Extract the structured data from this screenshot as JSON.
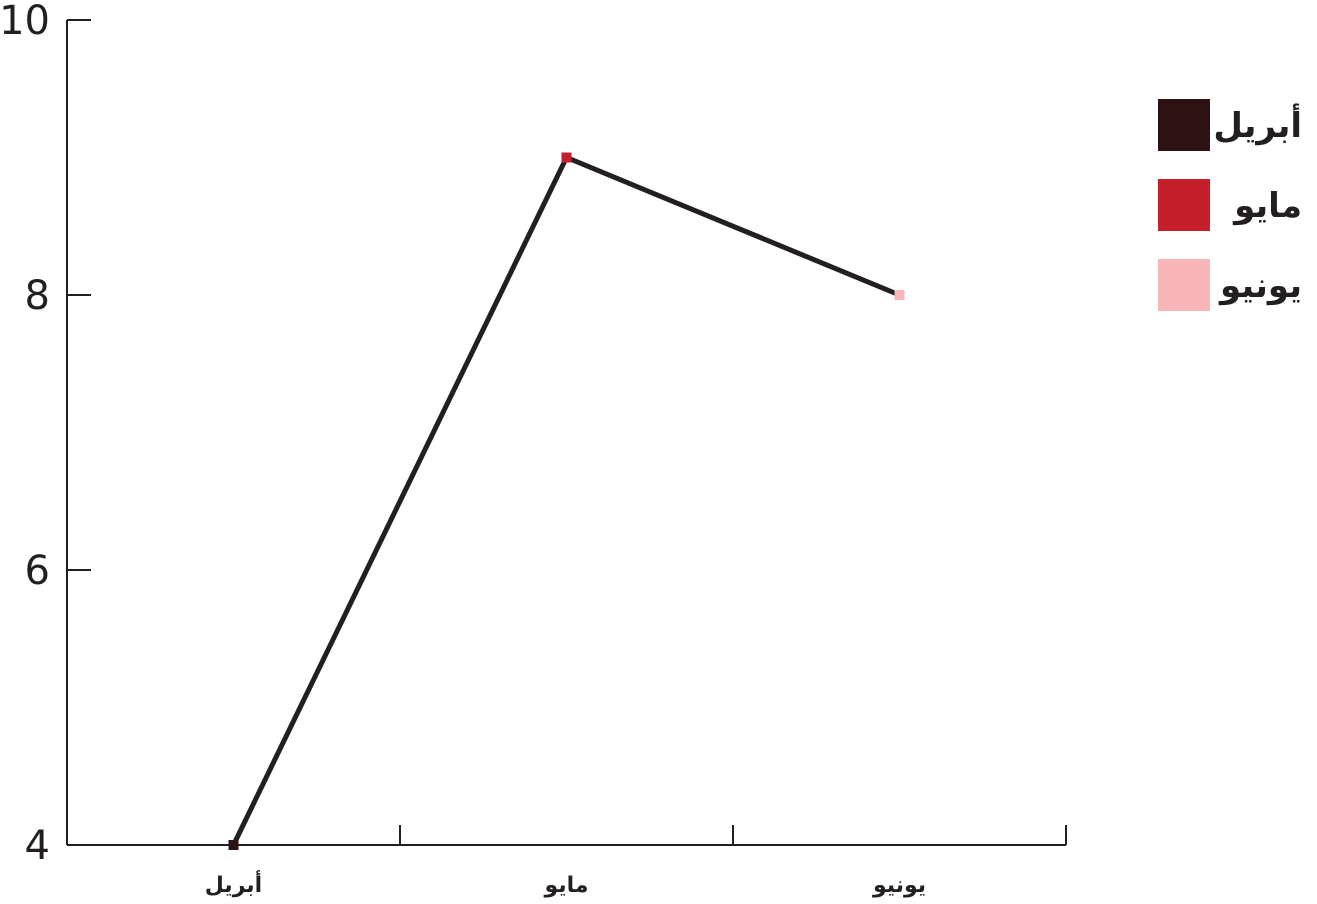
{
  "chart_data": {
    "type": "line",
    "categories": [
      "أبريل",
      "مايو",
      "يونيو"
    ],
    "series": [
      {
        "values": [
          4,
          9,
          8
        ]
      }
    ],
    "point_colors": [
      "#2e1113",
      "#c41f2a",
      "#f8b6b8"
    ],
    "line_color": "#231f20",
    "ylim": [
      4,
      10
    ],
    "yticks": [
      4,
      6,
      8,
      10
    ],
    "legend": {
      "placement": "top-right",
      "items": [
        {
          "label": "أبريل",
          "color": "#2e1113"
        },
        {
          "label": "مايو",
          "color": "#c41f2a"
        },
        {
          "label": "يونيو",
          "color": "#f8b6b8"
        }
      ]
    },
    "grid": false
  }
}
